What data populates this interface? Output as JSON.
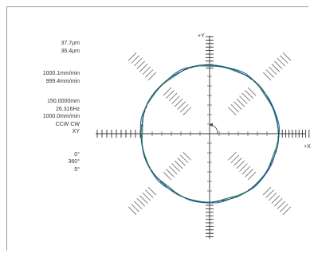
{
  "panel": {
    "values": [
      "37.7µm",
      "36.4µm",
      "1000.1mm/min",
      "999.4mm/min",
      "150.0000mm",
      "26.316Hz",
      "1000.0mm/min",
      "CCW CW",
      "XY",
      "0°",
      "360°",
      "5°"
    ]
  },
  "plot": {
    "axis_x_label": "+X",
    "axis_y_label": "+Y",
    "trace_colors": [
      "#2f6fbf",
      "#2f8a4a",
      "#1f3f7f"
    ],
    "reference_color": "#333333"
  }
}
